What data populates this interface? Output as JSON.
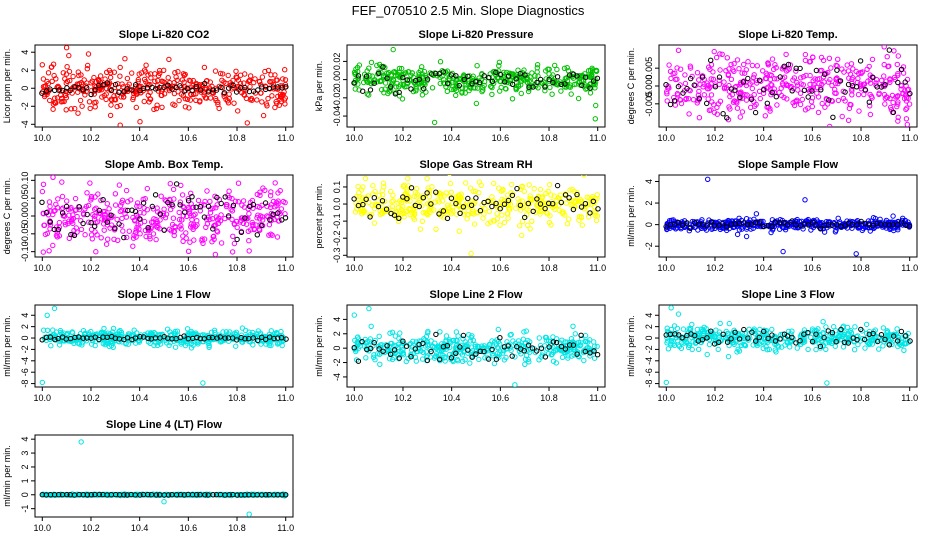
{
  "figure_title": "FEF_070510  2.5 Min. Slope Diagnostics",
  "chart_data": [
    {
      "type": "scatter",
      "title": "Slope Li-820 CO2",
      "ylabel": "Licor ppm per min.",
      "color": "#ff0000",
      "xlim": [
        9.97,
        11.03
      ],
      "ylim": [
        -4.3,
        4.8
      ],
      "xticks": [
        10.0,
        10.2,
        10.4,
        10.6,
        10.8,
        11.0
      ],
      "xtick_labels": [
        "10.0",
        "10.2",
        "10.4",
        "10.6",
        "10.8",
        "11.0"
      ],
      "yticks": [
        -4,
        -2,
        0,
        2,
        4
      ],
      "ytick_labels": [
        "-4",
        "-2",
        "0",
        "2",
        "4"
      ],
      "spread": 1.1,
      "outlier_points": [
        [
          10.1,
          4.5
        ],
        [
          10.19,
          3.8
        ],
        [
          10.32,
          -4.1
        ],
        [
          10.0,
          2.6
        ],
        [
          10.52,
          3.2
        ]
      ],
      "black_spread": 0.25
    },
    {
      "type": "scatter",
      "title": "Slope Li-820 Pressure",
      "ylabel": "kPa per min.",
      "color": "#00c000",
      "xlim": [
        9.97,
        11.03
      ],
      "ylim": [
        -0.052,
        0.038
      ],
      "xticks": [
        10.0,
        10.2,
        10.4,
        10.6,
        10.8,
        11.0
      ],
      "xtick_labels": [
        "10.0",
        "10.2",
        "10.4",
        "10.6",
        "10.8",
        "11.0"
      ],
      "yticks": [
        -0.04,
        -0.02,
        0.0,
        0.02
      ],
      "ytick_labels": [
        "-0.04",
        "-0.02",
        "0.00",
        "0.02"
      ],
      "spread": 0.008,
      "outlier_points": [
        [
          10.16,
          0.033
        ],
        [
          10.33,
          -0.047
        ],
        [
          10.65,
          -0.021
        ],
        [
          10.99,
          -0.043
        ]
      ],
      "black_spread": 0.007
    },
    {
      "type": "scatter",
      "title": "Slope Li-820 Temp.",
      "ylabel": "degrees C per min.",
      "color": "#ff00ff",
      "xlim": [
        9.97,
        11.03
      ],
      "ylim": [
        -0.0115,
        0.0115
      ],
      "xticks": [
        10.0,
        10.2,
        10.4,
        10.6,
        10.8,
        11.0
      ],
      "xtick_labels": [
        "10.0",
        "10.2",
        "10.4",
        "10.6",
        "10.8",
        "11.0"
      ],
      "yticks": [
        -0.005,
        0.0,
        0.005
      ],
      "ytick_labels": [
        "-0.005",
        "0.000",
        "0.005"
      ],
      "spread": 0.0042,
      "outlier_points": [
        [
          10.05,
          0.01
        ],
        [
          10.22,
          0.009
        ],
        [
          10.99,
          -0.0108
        ]
      ],
      "black_spread": 0.004
    },
    {
      "type": "scatter",
      "title": "Slope Amb. Box Temp.",
      "ylabel": "degrees C per min.",
      "color": "#ff00ff",
      "xlim": [
        9.97,
        11.03
      ],
      "ylim": [
        -0.115,
        0.115
      ],
      "xticks": [
        10.0,
        10.2,
        10.4,
        10.6,
        10.8,
        11.0
      ],
      "xtick_labels": [
        "10.0",
        "10.2",
        "10.4",
        "10.6",
        "10.8",
        "11.0"
      ],
      "yticks": [
        -0.1,
        -0.05,
        0.0,
        0.05,
        0.1
      ],
      "ytick_labels": [
        "-0.10",
        "-0.05",
        "0.00",
        "0.05",
        "0.10"
      ],
      "spread": 0.042,
      "outlier_points": [
        [
          10.08,
          0.095
        ],
        [
          10.85,
          -0.098
        ],
        [
          10.22,
          -0.1
        ]
      ],
      "black_spread": 0.035
    },
    {
      "type": "scatter",
      "title": "Slope Gas Stream RH",
      "ylabel": "percent per min.",
      "color": "#ffff00",
      "xlim": [
        9.97,
        11.03
      ],
      "ylim": [
        -0.31,
        0.17
      ],
      "xticks": [
        10.0,
        10.2,
        10.4,
        10.6,
        10.8,
        11.0
      ],
      "xtick_labels": [
        "10.0",
        "10.2",
        "10.4",
        "10.6",
        "10.8",
        "11.0"
      ],
      "yticks": [
        -0.3,
        -0.2,
        -0.1,
        0.0,
        0.1
      ],
      "ytick_labels": [
        "-0.3",
        "-0.2",
        "-0.1",
        "0.0",
        "0.1"
      ],
      "spread": 0.055,
      "outlier_points": [
        [
          10.48,
          -0.29
        ],
        [
          10.22,
          0.15
        ]
      ],
      "black_spread": 0.045
    },
    {
      "type": "scatter",
      "title": "Slope Sample Flow",
      "ylabel": "ml/min per min.",
      "color": "#0000ff",
      "xlim": [
        9.97,
        11.03
      ],
      "ylim": [
        -3.0,
        4.6
      ],
      "xticks": [
        10.0,
        10.2,
        10.4,
        10.6,
        10.8,
        11.0
      ],
      "xtick_labels": [
        "10.0",
        "10.2",
        "10.4",
        "10.6",
        "10.8",
        "11.0"
      ],
      "yticks": [
        -2,
        0,
        2,
        4
      ],
      "ytick_labels": [
        "-2",
        "0",
        "2",
        "4"
      ],
      "spread": 0.25,
      "outlier_points": [
        [
          10.17,
          4.2
        ],
        [
          10.48,
          -2.5
        ],
        [
          10.57,
          2.3
        ],
        [
          10.78,
          -2.7
        ],
        [
          10.37,
          1.0
        ],
        [
          10.33,
          -1.1
        ]
      ],
      "black_spread": 0.15
    },
    {
      "type": "scatter",
      "title": "Slope Line 1 Flow",
      "ylabel": "ml/min per min.",
      "color": "#00e5e5",
      "xlim": [
        9.97,
        11.03
      ],
      "ylim": [
        -8.6,
        5.8
      ],
      "xticks": [
        10.0,
        10.2,
        10.4,
        10.6,
        10.8,
        11.0
      ],
      "xtick_labels": [
        "10.0",
        "10.2",
        "10.4",
        "10.6",
        "10.8",
        "11.0"
      ],
      "yticks": [
        -8,
        -6,
        -4,
        -2,
        0,
        2,
        4
      ],
      "ytick_labels": [
        "-8",
        "-6",
        "-4",
        "-2",
        "0",
        "2",
        "4"
      ],
      "spread": 0.7,
      "outlier_points": [
        [
          10.0,
          -7.8
        ],
        [
          10.05,
          5.2
        ],
        [
          10.66,
          -7.9
        ],
        [
          10.02,
          4.0
        ]
      ],
      "black_spread": 0.15
    },
    {
      "type": "scatter",
      "title": "Slope Line 2 Flow",
      "ylabel": "ml/min per min.",
      "color": "#00e5e5",
      "xlim": [
        9.97,
        11.03
      ],
      "ylim": [
        -5.4,
        6.0
      ],
      "xticks": [
        10.0,
        10.2,
        10.4,
        10.6,
        10.8,
        11.0
      ],
      "xtick_labels": [
        "10.0",
        "10.2",
        "10.4",
        "10.6",
        "10.8",
        "11.0"
      ],
      "yticks": [
        -4,
        -2,
        0,
        2,
        4
      ],
      "ytick_labels": [
        "-4",
        "-2",
        "0",
        "2",
        "4"
      ],
      "spread": 1.0,
      "outlier_points": [
        [
          10.06,
          5.5
        ],
        [
          10.66,
          -5.1
        ],
        [
          10.0,
          4.6
        ]
      ],
      "black_spread": 0.8
    },
    {
      "type": "scatter",
      "title": "Slope Line 3 Flow",
      "ylabel": "ml/min per min.",
      "color": "#00e5e5",
      "xlim": [
        9.97,
        11.03
      ],
      "ylim": [
        -8.6,
        5.8
      ],
      "xticks": [
        10.0,
        10.2,
        10.4,
        10.6,
        10.8,
        11.0
      ],
      "xtick_labels": [
        "10.0",
        "10.2",
        "10.4",
        "10.6",
        "10.8",
        "11.0"
      ],
      "yticks": [
        -8,
        -6,
        -4,
        -2,
        0,
        2,
        4
      ],
      "ytick_labels": [
        "-8",
        "-6",
        "-4",
        "-2",
        "0",
        "2",
        "4"
      ],
      "spread": 1.0,
      "outlier_points": [
        [
          10.0,
          -7.8
        ],
        [
          10.66,
          -7.9
        ],
        [
          10.02,
          5.3
        ],
        [
          10.05,
          4.2
        ]
      ],
      "black_spread": 0.7
    },
    {
      "type": "scatter",
      "title": "Slope Line 4 (LT) Flow",
      "ylabel": "ml/min per min.",
      "color": "#00e5e5",
      "xlim": [
        9.97,
        11.03
      ],
      "ylim": [
        -1.6,
        4.3
      ],
      "xticks": [
        10.0,
        10.2,
        10.4,
        10.6,
        10.8,
        11.0
      ],
      "xtick_labels": [
        "10.0",
        "10.2",
        "10.4",
        "10.6",
        "10.8",
        "11.0"
      ],
      "yticks": [
        -1,
        0,
        1,
        2,
        3,
        4
      ],
      "ytick_labels": [
        "-1",
        "0",
        "1",
        "2",
        "3",
        "4"
      ],
      "spread": 0.02,
      "outlier_points": [
        [
          10.16,
          3.8
        ],
        [
          10.5,
          -0.5
        ],
        [
          10.85,
          -1.4
        ]
      ],
      "black_spread": 0.01
    }
  ]
}
